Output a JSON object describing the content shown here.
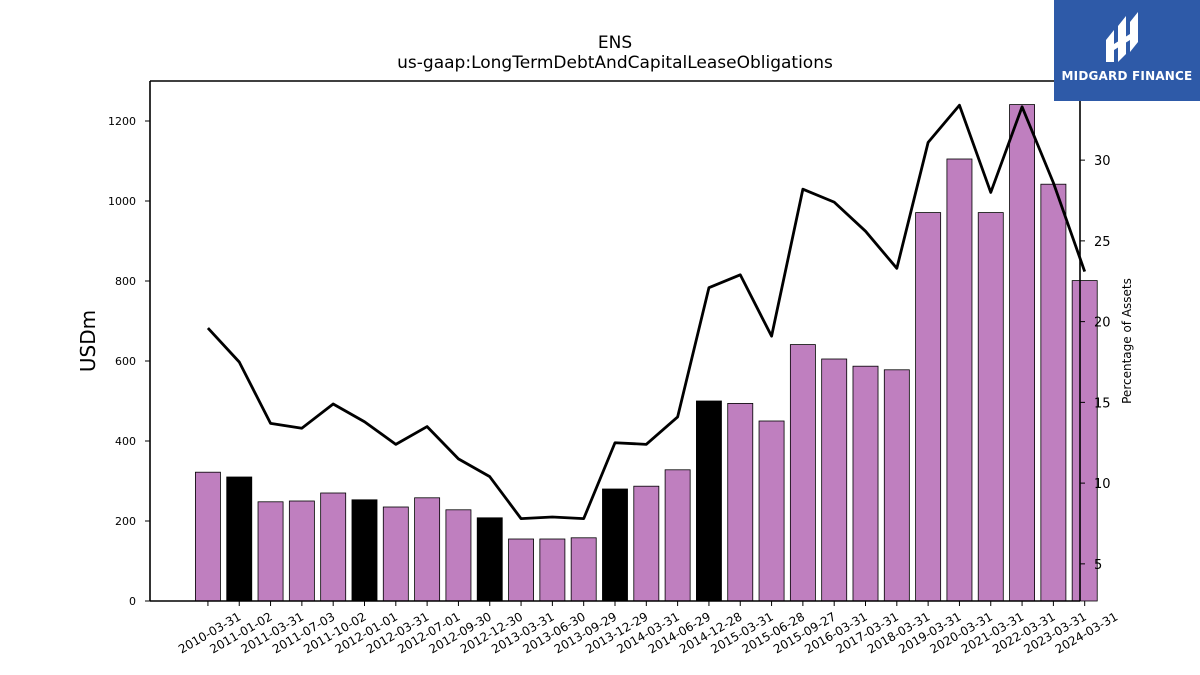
{
  "chart_data": {
    "type": "bar",
    "title": "ENS",
    "subtitle": "us-gaap:LongTermDebtAndCapitalLeaseObligations",
    "ylabel": "USDm",
    "y2label": "Percentage of Assets",
    "ylim": [
      0,
      1300
    ],
    "y2lim": [
      2.7,
      34.9
    ],
    "yticks": [
      0,
      200,
      400,
      600,
      800,
      1000,
      1200
    ],
    "y2ticks": [
      5,
      10,
      15,
      20,
      25,
      30
    ],
    "categories": [
      "2010-03-31",
      "2011-01-02",
      "2011-03-31",
      "2011-07-03",
      "2011-10-02",
      "2012-01-01",
      "2012-03-31",
      "2012-07-01",
      "2012-09-30",
      "2012-12-30",
      "2013-03-31",
      "2013-06-30",
      "2013-09-29",
      "2013-12-29",
      "2014-03-31",
      "2014-06-29",
      "2014-12-28",
      "2015-03-31",
      "2015-06-28",
      "2015-09-27",
      "2016-03-31",
      "2017-03-31",
      "2018-03-31",
      "2019-03-31",
      "2020-03-31",
      "2021-03-31",
      "2022-03-31",
      "2023-03-31",
      "2024-03-31"
    ],
    "series": [
      {
        "type": "bar",
        "values": [
          322,
          310,
          248,
          250,
          270,
          253,
          235,
          258,
          228,
          208,
          155,
          155,
          158,
          280,
          287,
          328,
          500,
          494,
          450,
          641,
          605,
          587,
          578,
          971,
          1105,
          971,
          1241,
          1042,
          801
        ],
        "colors": [
          "#bf7fbf",
          "#000000",
          "#bf7fbf",
          "#bf7fbf",
          "#bf7fbf",
          "#000000",
          "#bf7fbf",
          "#bf7fbf",
          "#bf7fbf",
          "#000000",
          "#bf7fbf",
          "#bf7fbf",
          "#bf7fbf",
          "#000000",
          "#bf7fbf",
          "#bf7fbf",
          "#000000",
          "#bf7fbf",
          "#bf7fbf",
          "#bf7fbf",
          "#bf7fbf",
          "#bf7fbf",
          "#bf7fbf",
          "#bf7fbf",
          "#bf7fbf",
          "#bf7fbf",
          "#bf7fbf",
          "#bf7fbf",
          "#bf7fbf"
        ]
      },
      {
        "type": "line",
        "axis": "right",
        "color": "#000000",
        "values": [
          19.6,
          17.5,
          13.7,
          13.4,
          14.9,
          13.8,
          12.4,
          13.5,
          11.5,
          10.4,
          7.8,
          7.9,
          7.8,
          12.5,
          12.4,
          14.1,
          22.1,
          22.9,
          19.1,
          28.2,
          27.4,
          25.6,
          23.3,
          31.1,
          33.4,
          28.0,
          33.3,
          28.6,
          23.1
        ]
      }
    ],
    "grid": false,
    "legend": "none"
  },
  "logo": {
    "text": "MIDGARD FINANCE",
    "bg_color": "#2e5aa8"
  }
}
